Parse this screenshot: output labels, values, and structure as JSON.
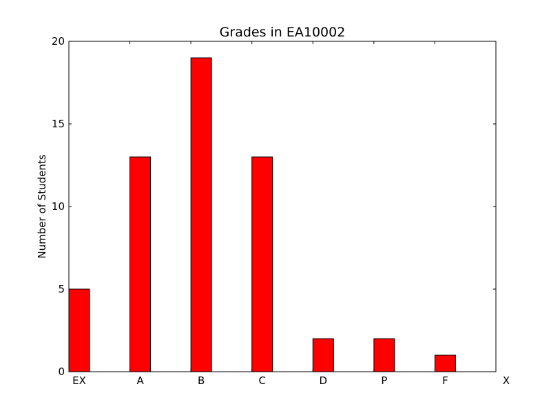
{
  "chart_data": {
    "type": "bar",
    "title": "Grades in EA10002",
    "xlabel": "",
    "ylabel": "Number of Students",
    "categories": [
      "EX",
      "A",
      "B",
      "C",
      "D",
      "P",
      "F",
      "X"
    ],
    "values": [
      5,
      13,
      19,
      13,
      2,
      2,
      1,
      0
    ],
    "ylim": [
      0,
      20
    ],
    "yticks": [
      0,
      5,
      10,
      15,
      20
    ],
    "grid": false,
    "legend": "none",
    "bar_color": "#ff0000",
    "edge_color": "#000000"
  }
}
